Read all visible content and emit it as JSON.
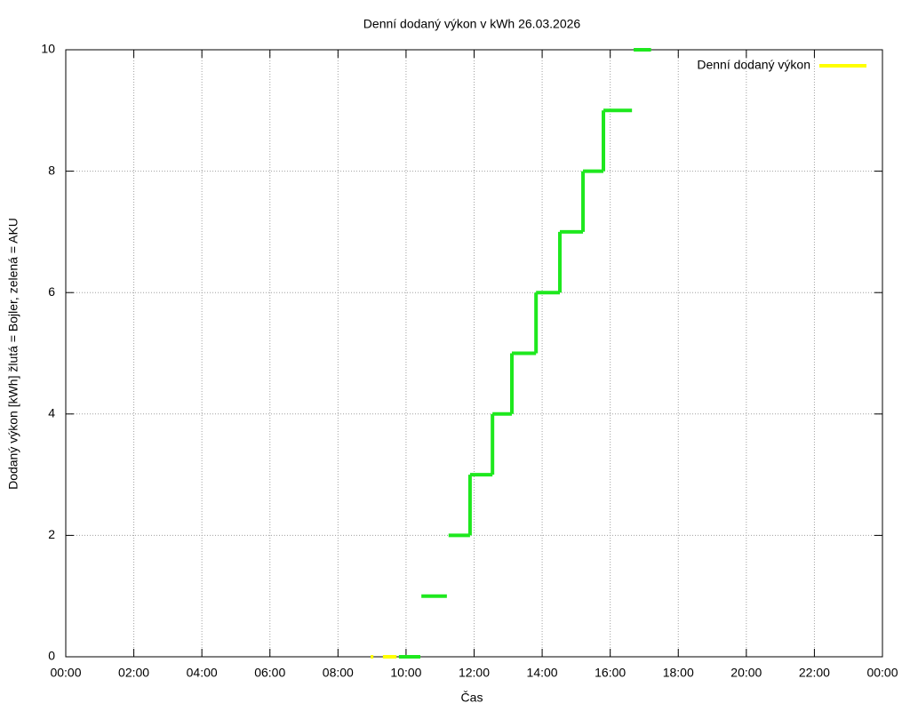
{
  "chart_data": {
    "type": "step-segments",
    "title": "Denní dodaný výkon v kWh 26.03.2026",
    "x_label": "Čas",
    "y_label": "Dodaný výkon [kWh]  žlutá = Bojler, zelená = AKU",
    "xlim": [
      0,
      24
    ],
    "xticks": [
      {
        "value": 0,
        "label": "00:00"
      },
      {
        "value": 2,
        "label": "02:00"
      },
      {
        "value": 4,
        "label": "04:00"
      },
      {
        "value": 6,
        "label": "06:00"
      },
      {
        "value": 8,
        "label": "08:00"
      },
      {
        "value": 10,
        "label": "10:00"
      },
      {
        "value": 12,
        "label": "12:00"
      },
      {
        "value": 14,
        "label": "14:00"
      },
      {
        "value": 16,
        "label": "16:00"
      },
      {
        "value": 18,
        "label": "18:00"
      },
      {
        "value": 20,
        "label": "20:00"
      },
      {
        "value": 22,
        "label": "22:00"
      },
      {
        "value": 24,
        "label": "00:00"
      }
    ],
    "ylim": [
      0,
      10
    ],
    "yticks": [
      0,
      2,
      4,
      6,
      8,
      10
    ],
    "grid": true,
    "legend": "top-right",
    "series": [
      {
        "name": "Denní dodaný výkon",
        "color": "#ffff00",
        "x": [
          8.96,
          9.32
        ],
        "x_end": [
          9.04,
          9.72
        ],
        "values": [
          0,
          0
        ]
      },
      {
        "color": "#1ee81e",
        "x": [
          9.79,
          10.45,
          11.25,
          11.88,
          12.54,
          13.11,
          13.82,
          14.52,
          15.2,
          15.8,
          16.69
        ],
        "x_end": [
          10.42,
          11.2,
          11.88,
          12.54,
          13.11,
          13.82,
          14.52,
          15.2,
          15.8,
          16.64,
          17.2
        ],
        "values": [
          0,
          1,
          2,
          3,
          4,
          5,
          6,
          7,
          8,
          9,
          10
        ]
      }
    ]
  }
}
